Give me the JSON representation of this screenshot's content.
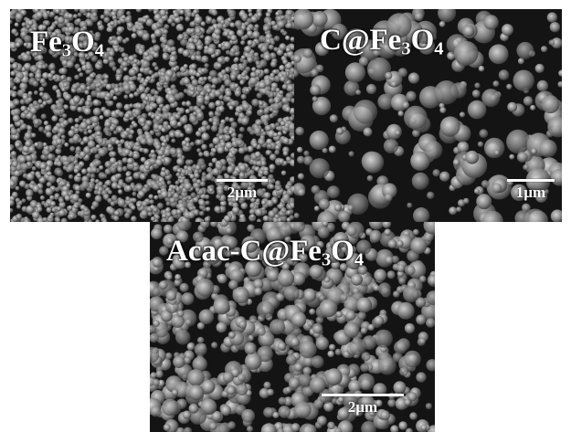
{
  "panels": [
    {
      "id": "fe3o4",
      "label": {
        "main": "Fe",
        "sub1": "3",
        "mid": "O",
        "sub2": "4"
      },
      "scale_bar": "2µm"
    },
    {
      "id": "c-fe3o4",
      "label": {
        "main": "C@Fe",
        "sub1": "3",
        "mid": "O",
        "sub2": "4"
      },
      "scale_bar": "1µm"
    },
    {
      "id": "acac-c-fe3o4",
      "label": {
        "main": "Acac-C@Fe",
        "sub1": "3",
        "mid": "O",
        "sub2": "4"
      },
      "scale_bar": "2µm"
    }
  ],
  "colors": {
    "background": "#ffffff",
    "text": "#ffffff",
    "sem_dark": "#111111"
  }
}
